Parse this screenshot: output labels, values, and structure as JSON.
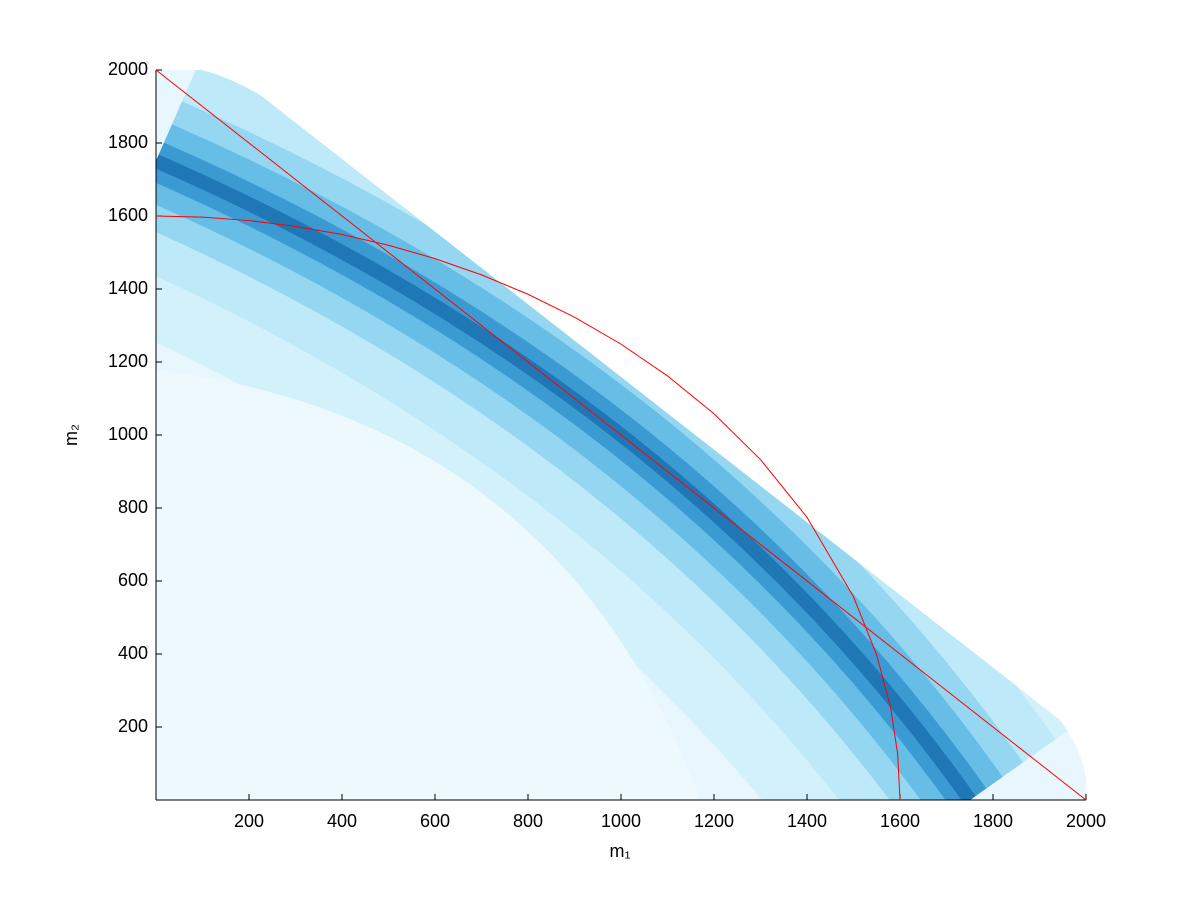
{
  "chart_data": {
    "type": "line",
    "xlabel": "m₁",
    "ylabel": "m₂",
    "xlim": [
      0,
      2000
    ],
    "ylim": [
      0,
      2000
    ],
    "xticks": [
      200,
      400,
      600,
      800,
      1000,
      1200,
      1400,
      1600,
      1800,
      2000
    ],
    "yticks": [
      200,
      400,
      600,
      800,
      1000,
      1200,
      1400,
      1600,
      1800,
      2000
    ],
    "series": [
      {
        "color": "#ff0000",
        "x": [
          0,
          2000
        ],
        "values": [
          2000,
          0
        ]
      },
      {
        "color": "#ff0000",
        "x": [
          0,
          100,
          200,
          300,
          400,
          500,
          600,
          700,
          800,
          900,
          1000,
          1100,
          1200,
          1300,
          1400,
          1500,
          1550,
          1580,
          1595,
          1600
        ],
        "values": [
          1600,
          1596.9,
          1587.5,
          1571.6,
          1549.2,
          1519.9,
          1483.2,
          1438.7,
          1385.6,
          1322.9,
          1249.0,
          1161.9,
          1058.3,
          932.7,
          774.6,
          556.8,
          396.9,
          252.2,
          126.4,
          0
        ]
      }
    ]
  }
}
